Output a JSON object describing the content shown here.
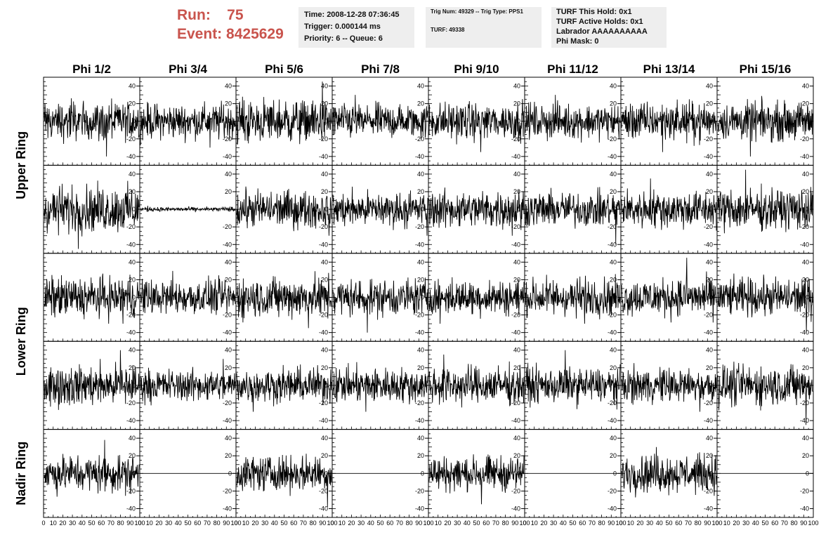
{
  "header": {
    "run_label": "Run:",
    "run_value": "75",
    "event_label": "Event:",
    "event_value": "8425629"
  },
  "info_time": {
    "time": "Time: 2008-12-28 07:36:45",
    "trigger": "Trigger: 0.000144 ms",
    "priority": "Priority: 6 -- Queue: 6"
  },
  "info_trig": {
    "trig": "Trig Num: 49329 -- Trig Type: PPS1",
    "turf": "TURF: 49338"
  },
  "info_turf": {
    "hold": "TURF This Hold: 0x1",
    "active": "TURF Active Holds: 0x1",
    "labrador": "Labrador AAAAAAAAAA",
    "mask": "Phi Mask: 0"
  },
  "chart_data": {
    "type": "line",
    "columns": [
      "Phi 1/2",
      "Phi 3/4",
      "Phi 5/6",
      "Phi 7/8",
      "Phi 9/10",
      "Phi 11/12",
      "Phi 13/14",
      "Phi 15/16"
    ],
    "rows": [
      "Upper Ring",
      "Upper Ring",
      "Lower Ring",
      "Lower Ring",
      "Nadir Ring"
    ],
    "row_groups": [
      {
        "name": "Upper Ring",
        "rows": [
          0,
          1
        ]
      },
      {
        "name": "Lower Ring",
        "rows": [
          2,
          3
        ]
      },
      {
        "name": "Nadir Ring",
        "rows": [
          4
        ]
      }
    ],
    "ylim": [
      -50,
      50
    ],
    "yticks": [
      -40,
      -20,
      0,
      20,
      40
    ],
    "xlim": [
      0,
      100
    ],
    "xtick_labels": [
      "0",
      "10",
      "20",
      "30",
      "40",
      "50",
      "60",
      "70",
      "80",
      "90",
      "100"
    ],
    "samples_per_trace": 260,
    "panels": [
      [
        {
          "amp": 14,
          "peak": 40
        },
        {
          "amp": 12,
          "peak": 30
        },
        {
          "amp": 15,
          "peak": 45
        },
        {
          "amp": 12,
          "peak": 30
        },
        {
          "amp": 13,
          "peak": 35
        },
        {
          "amp": 12,
          "peak": 30
        },
        {
          "amp": 13,
          "peak": 35
        },
        {
          "amp": 13,
          "peak": 40
        }
      ],
      [
        {
          "amp": 16,
          "peak": 45
        },
        {
          "amp": 1.5,
          "peak": 4
        },
        {
          "amp": 13,
          "peak": 30
        },
        {
          "amp": 12,
          "peak": 30
        },
        {
          "amp": 13,
          "peak": 30
        },
        {
          "amp": 12,
          "peak": 40
        },
        {
          "amp": 13,
          "peak": 35
        },
        {
          "amp": 14,
          "peak": 45
        }
      ],
      [
        {
          "amp": 14,
          "peak": 30
        },
        {
          "amp": 12,
          "peak": 30
        },
        {
          "amp": 14,
          "peak": 35
        },
        {
          "amp": 13,
          "peak": 40
        },
        {
          "amp": 12,
          "peak": 30
        },
        {
          "amp": 13,
          "peak": 30
        },
        {
          "amp": 13,
          "peak": 45
        },
        {
          "amp": 13,
          "peak": 40
        }
      ],
      [
        {
          "amp": 14,
          "peak": 40
        },
        {
          "amp": 11,
          "peak": 30
        },
        {
          "amp": 12,
          "peak": 30
        },
        {
          "amp": 12,
          "peak": 30
        },
        {
          "amp": 13,
          "peak": 35
        },
        {
          "amp": 12,
          "peak": 40
        },
        {
          "amp": 12,
          "peak": 30
        },
        {
          "amp": 14,
          "peak": 45
        }
      ],
      [
        {
          "amp": 13,
          "peak": 38
        },
        {
          "amp": 0,
          "peak": 0
        },
        {
          "amp": 12,
          "peak": 38
        },
        {
          "amp": 0,
          "peak": 0
        },
        {
          "amp": 12,
          "peak": 35
        },
        {
          "amp": 0,
          "peak": 0
        },
        {
          "amp": 13,
          "peak": 30
        },
        {
          "amp": 0,
          "peak": 0
        }
      ]
    ]
  }
}
